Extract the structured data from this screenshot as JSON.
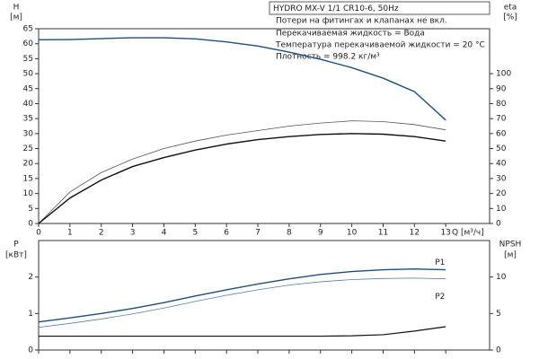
{
  "title": "HYDRO MX-V 1/1 CR10-6, 50Hz",
  "notes": [
    "Потери на фитингах и клапанах не вкл.",
    "Перекачиваемая жидкость = Вода",
    "Температура перекачиваемой жидкости = 20 °C",
    "Плотность = 998.2 кг/м³"
  ],
  "chart_data": [
    {
      "type": "line",
      "ylabel": "H",
      "yunit": "[м]",
      "y2label": "eta",
      "y2unit": "[%]",
      "xlabel": "Q [м³/ч]",
      "x": [
        0,
        1,
        2,
        3,
        4,
        5,
        6,
        7,
        8,
        9,
        10,
        11,
        12,
        13
      ],
      "xlim": [
        0,
        14.4
      ],
      "xticks": [
        0,
        1,
        2,
        3,
        4,
        5,
        6,
        7,
        8,
        9,
        10,
        11,
        12,
        13
      ],
      "ylim": [
        0,
        65
      ],
      "yticks": [
        0,
        5,
        10,
        15,
        20,
        25,
        30,
        35,
        40,
        45,
        50,
        55,
        60,
        65
      ],
      "y2lim": [
        0,
        130
      ],
      "y2ticks": [
        0,
        10,
        20,
        30,
        40,
        50,
        60,
        70,
        80,
        90,
        100
      ],
      "series": [
        {
          "color": "#1f4e79",
          "width": 1.4,
          "values": [
            61.3,
            61.4,
            61.7,
            62,
            62,
            61.6,
            60.6,
            59.2,
            57.2,
            54.8,
            52,
            48.5,
            44,
            34.5
          ]
        },
        {
          "color": "#555555",
          "width": 0.8,
          "axis": "y2",
          "values": [
            0,
            21,
            34,
            43,
            50,
            55,
            59,
            62,
            65,
            67,
            68.5,
            68,
            66,
            62.5
          ]
        },
        {
          "color": "#111111",
          "width": 1.4,
          "axis": "y2",
          "values": [
            0,
            17,
            29,
            38,
            44,
            49,
            53,
            56,
            58,
            59.4,
            60,
            59.6,
            58,
            55
          ]
        }
      ]
    },
    {
      "type": "line",
      "ylabel": "P",
      "yunit": "[кВт]",
      "y2label": "NPSH",
      "y2unit": "[м]",
      "x": [
        0,
        1,
        2,
        3,
        4,
        5,
        6,
        7,
        8,
        9,
        10,
        11,
        12,
        13
      ],
      "xlim": [
        0,
        14.4
      ],
      "xticks": [
        0,
        1,
        2,
        3,
        4,
        5,
        6,
        7,
        8,
        9,
        10,
        11,
        12,
        13
      ],
      "ylim": [
        0,
        3
      ],
      "yticks": [
        0,
        1,
        2
      ],
      "y2lim": [
        0,
        15
      ],
      "y2ticks": [
        0,
        5,
        10
      ],
      "series": [
        {
          "name": "P1",
          "color": "#1f4e79",
          "width": 1.4,
          "values": [
            0.77,
            0.88,
            1.0,
            1.14,
            1.3,
            1.48,
            1.65,
            1.81,
            1.95,
            2.07,
            2.15,
            2.2,
            2.22,
            2.2
          ]
        },
        {
          "name": "P2",
          "color": "#5a7fa0",
          "width": 0.8,
          "values": [
            0.62,
            0.73,
            0.85,
            0.99,
            1.15,
            1.33,
            1.5,
            1.65,
            1.78,
            1.87,
            1.93,
            1.96,
            1.97,
            1.95
          ]
        },
        {
          "color": "#111111",
          "width": 1.2,
          "axis": "y2",
          "values": [
            1.9,
            1.9,
            1.9,
            1.9,
            1.9,
            1.9,
            1.9,
            1.9,
            1.9,
            1.9,
            1.95,
            2.1,
            2.6,
            3.2
          ]
        }
      ]
    }
  ]
}
